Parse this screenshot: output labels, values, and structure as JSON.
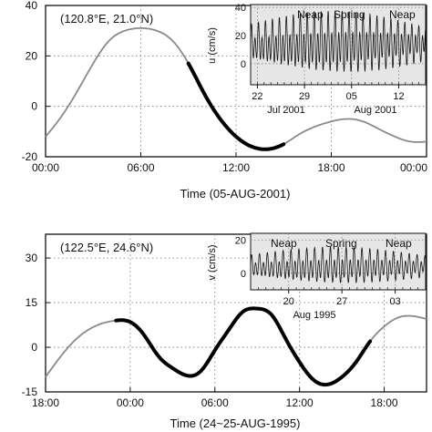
{
  "chart_data": [
    {
      "type": "line",
      "panel": "top",
      "location_label": "(120.8°E, 21.0°N)",
      "xlabel": "Time (05-AUG-2001)",
      "ylabel": "",
      "x_ticks": [
        "00:00",
        "06:00",
        "12:00",
        "18:00",
        "00:00"
      ],
      "y_ticks": [
        "-20",
        "0",
        "20",
        "40"
      ],
      "xlim_hours": [
        0,
        24
      ],
      "ylim": [
        -20,
        40
      ],
      "grid": "dotted",
      "series": [
        {
          "x_hours": [
            0,
            1,
            2,
            3,
            4,
            5,
            6,
            7,
            8,
            9,
            10,
            11,
            12,
            13,
            14,
            15,
            16,
            17,
            18,
            19,
            20,
            21,
            22,
            23,
            24
          ],
          "values": [
            -12,
            -4,
            6,
            17,
            26,
            30,
            31,
            30,
            26,
            17,
            5,
            -5,
            -12,
            -16,
            -17,
            -15,
            -11,
            -8,
            -6,
            -5,
            -6,
            -9,
            -12,
            -14,
            -14
          ]
        }
      ],
      "highlight_hours": [
        9,
        15
      ],
      "inset": {
        "ylabel": "u (cm/s)",
        "y_ticks": [
          "0",
          "20",
          "40"
        ],
        "ylim": [
          -15,
          42
        ],
        "x_ticks": [
          "22",
          "29",
          "05",
          "12"
        ],
        "month_labels": [
          "Jul 2001",
          "Aug 2001"
        ],
        "annotations": [
          "Neap",
          "Spring",
          "Neap"
        ],
        "days_shown": 26,
        "period_hours": 24,
        "mean": 14,
        "amplitude": [
          14,
          24,
          13
        ]
      }
    },
    {
      "type": "line",
      "panel": "bottom",
      "location_label": "(122.5°E, 24.6°N)",
      "xlabel": "Time (24~25-AUG-1995)",
      "ylabel": "",
      "x_ticks": [
        "18:00",
        "00:00",
        "06:00",
        "12:00",
        "18:00"
      ],
      "y_ticks": [
        "-15",
        "0",
        "15",
        "30"
      ],
      "xlim_hours": [
        18,
        45
      ],
      "ylim": [
        -15,
        38
      ],
      "grid": "dotted",
      "series": [
        {
          "x_hours": [
            18,
            20,
            22,
            23,
            24,
            25,
            26,
            27,
            28,
            29,
            30,
            31,
            32,
            33,
            34,
            35,
            36,
            37,
            38,
            39,
            40,
            41,
            42,
            43,
            44,
            45
          ],
          "values": [
            -10,
            2,
            8,
            9,
            8.5,
            4,
            -3,
            -7,
            -9.5,
            -8,
            -1,
            6,
            12,
            13,
            11,
            3,
            -5,
            -11,
            -12.5,
            -10,
            -5,
            2,
            7,
            10,
            10.5,
            9.5
          ]
        }
      ],
      "highlight_hours": [
        23,
        41
      ],
      "inset": {
        "ylabel": "v (cm/s)",
        "y_ticks": [
          "0",
          "20"
        ],
        "ylim": [
          -10,
          24
        ],
        "x_ticks": [
          "20",
          "27",
          "03"
        ],
        "month_labels": [
          "Aug 1995"
        ],
        "annotations": [
          "Neap",
          "Spring",
          "Neap"
        ],
        "days_shown": 23,
        "period_hours": 24,
        "mean": 4,
        "amplitude": [
          7,
          12,
          7
        ]
      }
    }
  ]
}
